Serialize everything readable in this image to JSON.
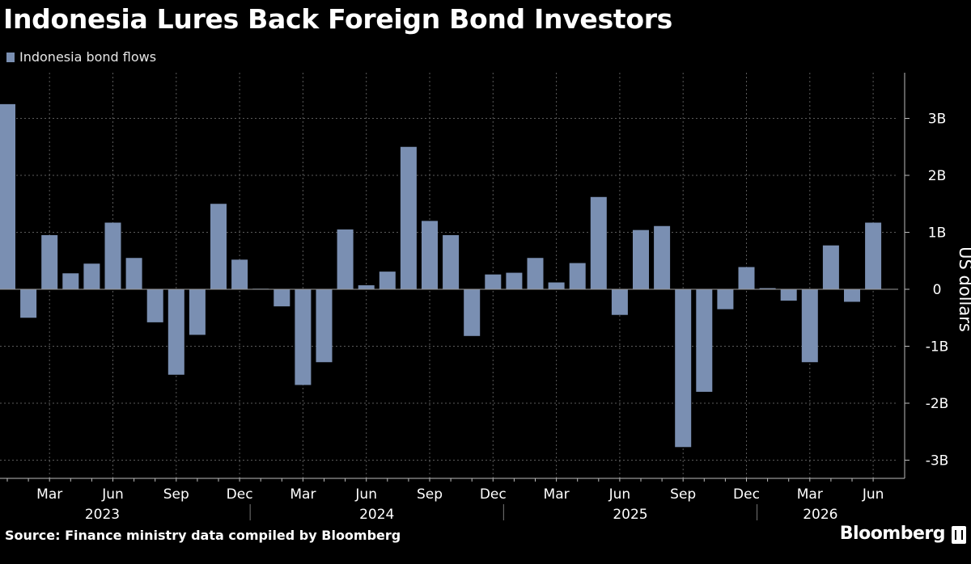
{
  "title": "Indonesia Lures Back Foreign Bond Investors",
  "source": "Source: Finance ministry data compiled by Bloomberg",
  "brand": "Bloomberg",
  "colors": {
    "bar": "#7a8fb2",
    "background": "#000000",
    "grid": "#5a5a5a",
    "text": "#ffffff"
  },
  "chart_data": {
    "type": "bar",
    "legend": [
      "Indonesia bond flows"
    ],
    "legend_position": "top-left",
    "ylabel": "US dollars",
    "ylim": [
      -3.4,
      3.8
    ],
    "yticks": [
      -3,
      -2,
      -1,
      0,
      1,
      2,
      3
    ],
    "ytick_labels": [
      "-3B",
      "-2B",
      "-1B",
      "0",
      "1B",
      "2B",
      "3B"
    ],
    "y_axis_position": "right",
    "grid": true,
    "month_labels": [
      "Mar",
      "Jun",
      "Sep",
      "Dec",
      "Mar",
      "Jun",
      "Sep",
      "Dec",
      "Mar",
      "Jun",
      "Sep",
      "Dec",
      "Mar",
      "Jun"
    ],
    "year_labels": [
      "2023",
      "2024",
      "2025",
      "2026"
    ],
    "categories": [
      "Jan 2023",
      "Feb 2023",
      "Mar 2023",
      "Apr 2023",
      "May 2023",
      "Jun 2023",
      "Jul 2023",
      "Aug 2023",
      "Sep 2023",
      "Oct 2023",
      "Nov 2023",
      "Dec 2023",
      "Jan 2024",
      "Feb 2024",
      "Mar 2024",
      "Apr 2024",
      "May 2024",
      "Jun 2024",
      "Jul 2024",
      "Aug 2024",
      "Sep 2024",
      "Oct 2024",
      "Nov 2024",
      "Dec 2024",
      "Jan 2025",
      "Feb 2025",
      "Mar 2025",
      "Apr 2025",
      "May 2025",
      "Jun 2025",
      "Jul 2025",
      "Aug 2025",
      "Sep 2025",
      "Oct 2025",
      "Nov 2025",
      "Dec 2025",
      "Jan 2026",
      "Feb 2026",
      "Mar 2026",
      "Apr 2026",
      "May 2026",
      "Jun 2026"
    ],
    "series": [
      {
        "name": "Indonesia bond flows",
        "values": [
          3.25,
          -0.5,
          0.95,
          0.28,
          0.45,
          1.17,
          0.55,
          -0.58,
          -1.5,
          -0.8,
          1.5,
          0.52,
          0.01,
          -0.3,
          -1.68,
          -1.28,
          1.05,
          0.07,
          0.31,
          2.5,
          1.2,
          0.95,
          -0.82,
          0.26,
          0.29,
          0.55,
          0.12,
          0.46,
          1.62,
          -0.45,
          1.04,
          1.11,
          -2.77,
          -1.8,
          -0.35,
          0.39,
          0.02,
          -0.2,
          -1.28,
          0.77,
          -0.22,
          1.17
        ]
      }
    ]
  }
}
